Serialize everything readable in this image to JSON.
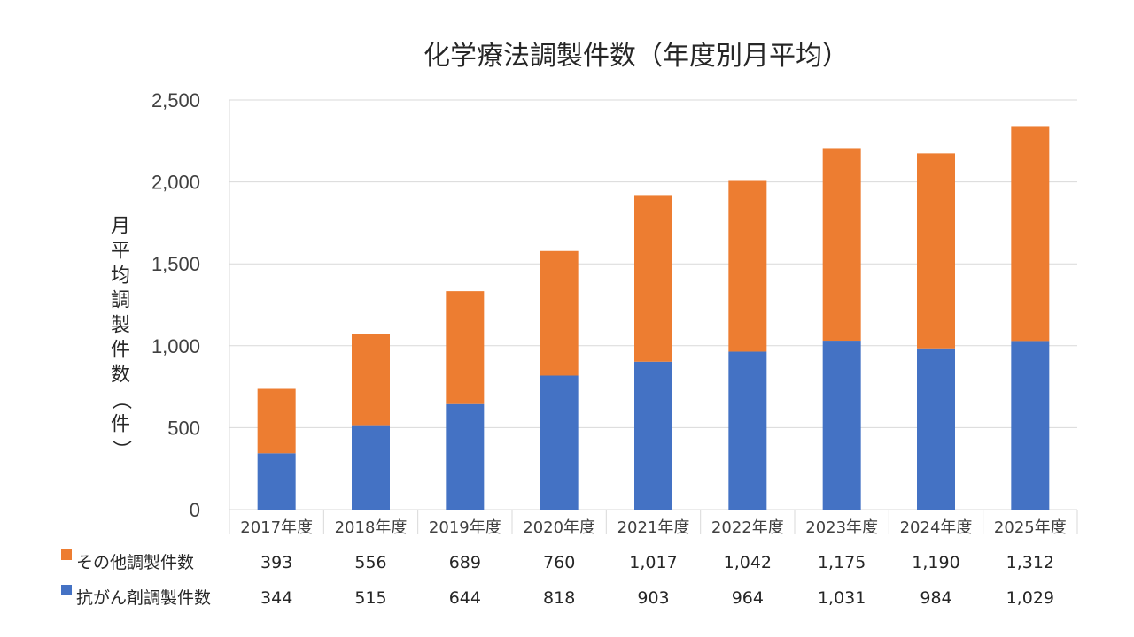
{
  "chart_data": {
    "type": "bar",
    "stacked": true,
    "title": "化学療法調製件数（年度別月平均）",
    "ylabel": "月平均調製件数（件）",
    "xlabel": "",
    "ylim": [
      0,
      2500
    ],
    "yticks": [
      0,
      500,
      1000,
      1500,
      2000,
      2500
    ],
    "ytick_labels": [
      "0",
      "500",
      "1,000",
      "1,500",
      "2,000",
      "2,500"
    ],
    "grid": true,
    "legend": "data-table-bottom",
    "categories": [
      "2017年度",
      "2018年度",
      "2019年度",
      "2020年度",
      "2021年度",
      "2022年度",
      "2023年度",
      "2024年度",
      "2025年度"
    ],
    "series": [
      {
        "name": "抗がん剤調製件数",
        "color": "#4472C4",
        "values": [
          344,
          515,
          644,
          818,
          903,
          964,
          1031,
          984,
          1029
        ],
        "value_labels": [
          "344",
          "515",
          "644",
          "818",
          "903",
          "964",
          "1,031",
          "984",
          "1,029"
        ]
      },
      {
        "name": "その他調製件数",
        "color": "#ED7D31",
        "values": [
          393,
          556,
          689,
          760,
          1017,
          1042,
          1175,
          1190,
          1312
        ],
        "value_labels": [
          "393",
          "556",
          "689",
          "760",
          "1,017",
          "1,042",
          "1,175",
          "1,190",
          "1,312"
        ]
      }
    ],
    "table_order": [
      "その他調製件数",
      "抗がん剤調製件数"
    ]
  }
}
